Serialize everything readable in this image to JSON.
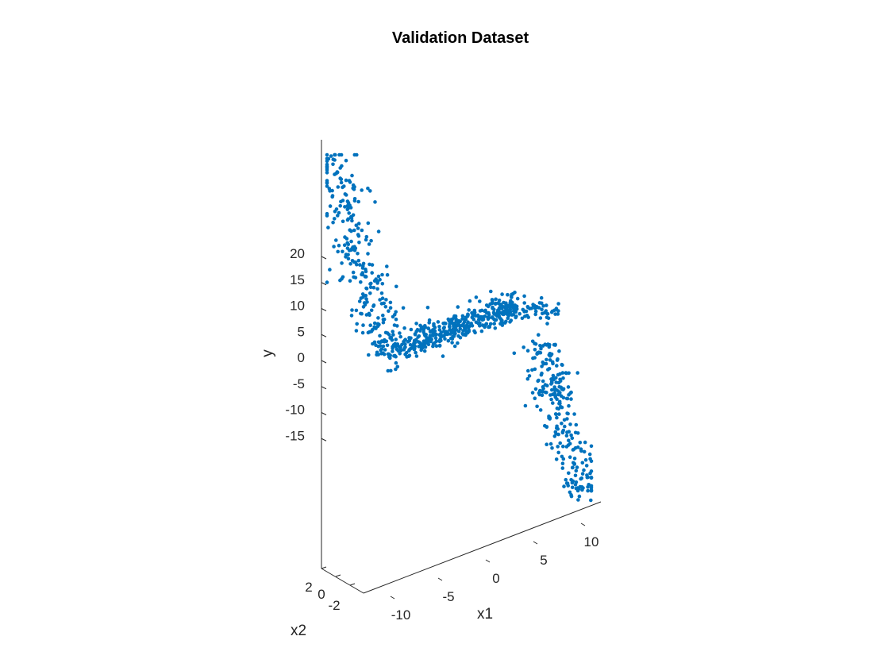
{
  "chart_data": {
    "type": "scatter",
    "title": "Validation Dataset",
    "xlabel": "x1",
    "x2label": "x2",
    "ylabel": "y",
    "view": "3d",
    "xlim": [
      -12,
      12
    ],
    "x2lim": [
      -3,
      3
    ],
    "ylim": [
      -20,
      20
    ],
    "x_ticks": [
      "-10",
      "-5",
      "0",
      "5",
      "10"
    ],
    "x2_ticks": [
      "2",
      "0",
      "-2"
    ],
    "y_ticks": [
      "20",
      "15",
      "10",
      "5",
      "0",
      "-5",
      "-10",
      "-15"
    ],
    "grid": false,
    "marker_color": "#0072BD",
    "series": [
      {
        "clusters": [
          {
            "x1": [
              -10,
              -7
            ],
            "y": [
              19,
              3
            ],
            "count": 260
          },
          {
            "x1": [
              -7,
              3
            ],
            "y": [
              4,
              3
            ],
            "count": 430
          },
          {
            "x1": [
              3,
              7
            ],
            "y": [
              3,
              2
            ],
            "count": 70
          },
          {
            "x1": [
              7,
              10
            ],
            "y": [
              2,
              -13
            ],
            "count": 260
          }
        ]
      }
    ]
  }
}
